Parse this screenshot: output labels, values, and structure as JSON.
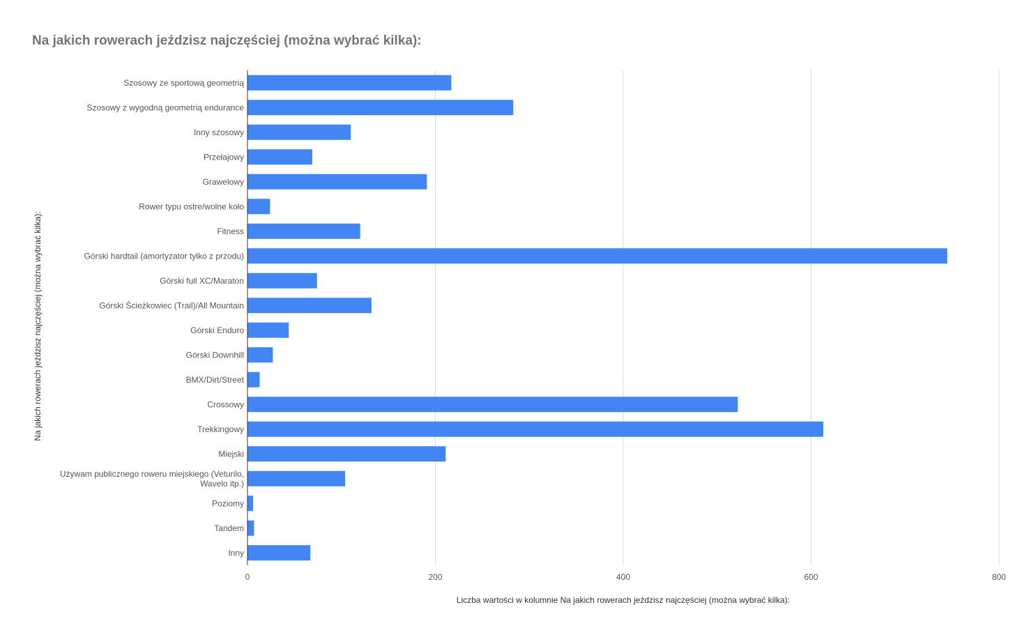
{
  "chart_data": {
    "type": "bar",
    "orientation": "horizontal",
    "title": "Na jakich rowerach jeździsz najczęściej (można wybrać kilka):",
    "xlabel": "Liczba wartości w kolumnie Na jakich rowerach jeździsz najczęściej (można wybrać kilka):",
    "ylabel": "Na jakich rowerach jeździsz najczęściej (można wybrać kilka):",
    "xlim": [
      0,
      800
    ],
    "x_ticks": [
      0,
      200,
      400,
      600,
      800
    ],
    "grid": true,
    "legend": "none",
    "bar_color": "#4285f4",
    "categories": [
      "Szosowy ze sportową geometrią",
      "Szosowy z wygodną geometrią endurance",
      "Inny szosowy",
      "Przełajowy",
      "Grawelowy",
      "Rower typu ostre/wolne koło",
      "Fitness",
      "Górski hardtail (amortyzator tylko z przodu)",
      "Górski full XC/Maraton",
      "Górski Ścieżkowiec (Trail)/All Mountain",
      "Górski Enduro",
      "Górski Downhill",
      "BMX/Dirt/Street",
      "Crossowy",
      "Trekkingowy",
      "Miejski",
      "Używam publicznego roweru miejskiego (Veturilo, Wavelo itp.)",
      "Poziomy",
      "Tandem",
      "Inny"
    ],
    "values": [
      217,
      283,
      110,
      69,
      191,
      24,
      120,
      745,
      74,
      132,
      44,
      27,
      13,
      522,
      613,
      211,
      104,
      6,
      7,
      67
    ]
  }
}
